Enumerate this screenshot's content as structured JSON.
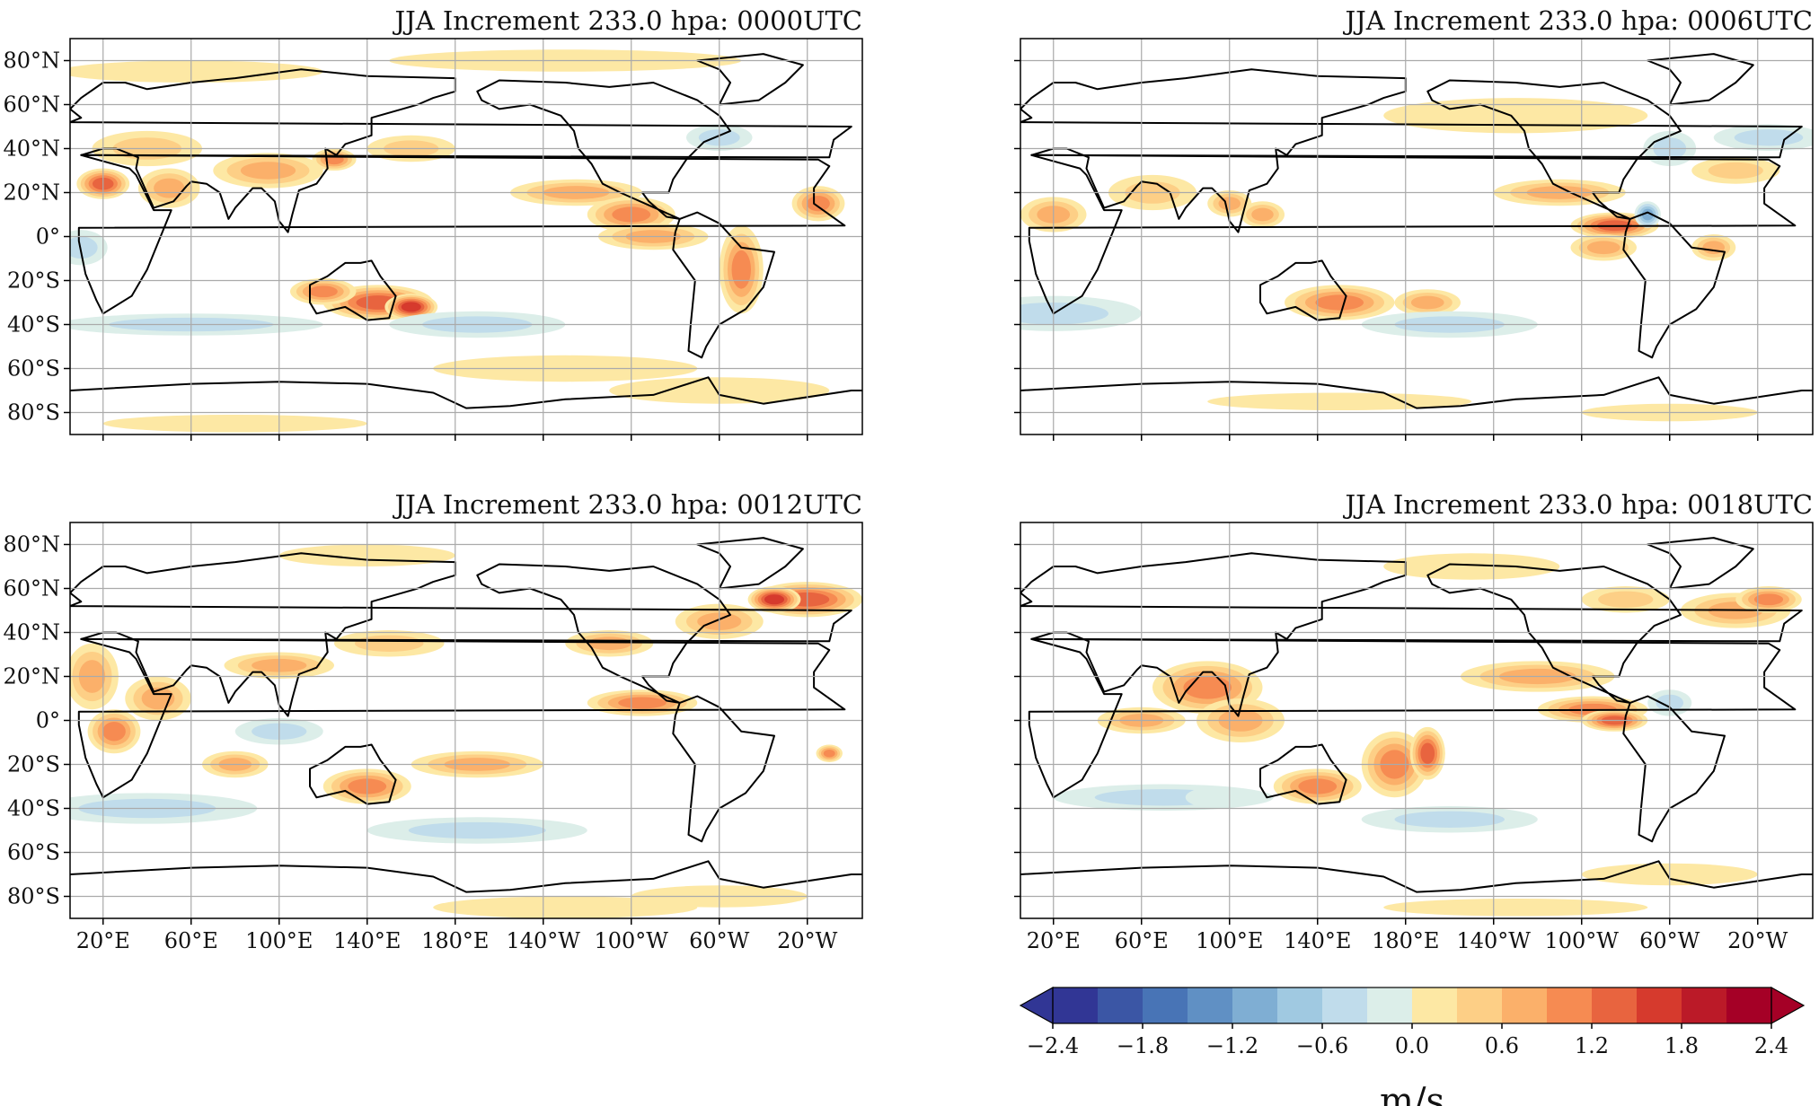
{
  "figure": {
    "panels": [
      {
        "title": "JJA Increment 233.0 hpa: 0000UTC"
      },
      {
        "title": "JJA Increment 233.0 hpa: 0006UTC"
      },
      {
        "title": "JJA Increment 233.0 hpa: 0012UTC"
      },
      {
        "title": "JJA Increment 233.0 hpa: 0018UTC"
      }
    ],
    "lat_labels": [
      "80°N",
      "60°N",
      "40°N",
      "20°N",
      "0°",
      "20°S",
      "40°S",
      "60°S",
      "80°S"
    ],
    "lon_labels": [
      "20°E",
      "60°E",
      "100°E",
      "140°E",
      "180°E",
      "140°W",
      "100°W",
      "60°W",
      "20°W"
    ],
    "colorbar": {
      "ticks": [
        "−2.4",
        "−1.8",
        "−1.2",
        "−0.6",
        "0.0",
        "0.6",
        "1.2",
        "1.8",
        "2.4"
      ],
      "unit": "m/s",
      "levels": [
        -2.4,
        -2.1,
        -1.8,
        -1.5,
        -1.2,
        -0.9,
        -0.6,
        -0.3,
        0.0,
        0.3,
        0.6,
        0.9,
        1.2,
        1.5,
        1.8,
        2.1,
        2.4
      ],
      "colors": [
        "#313695",
        "#3b56a5",
        "#4874b6",
        "#6090c4",
        "#7faed3",
        "#a0c9e1",
        "#c0dceb",
        "#dceee9",
        "#ffffff",
        "#fde8a4",
        "#fdcf86",
        "#fbb06a",
        "#f68b52",
        "#e8643f",
        "#d63a2d",
        "#bb1a28",
        "#a50026"
      ],
      "over_color": "#a50026",
      "under_color": "#313695"
    }
  }
}
